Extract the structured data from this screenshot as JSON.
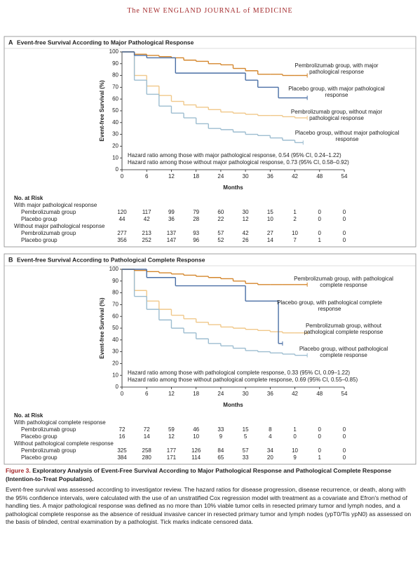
{
  "header": {
    "journal": "The NEW ENGLAND JOURNAL of MEDICINE"
  },
  "chart_data": [
    {
      "type": "line",
      "step": true,
      "panel": "A",
      "title": "Event-free Survival According to Major Pathological Response",
      "y_label": "Event-free Survival (%)",
      "x_label": "Months",
      "xlim": [
        0,
        54
      ],
      "ylim": [
        0,
        100
      ],
      "xticks": [
        0,
        6,
        12,
        18,
        24,
        30,
        36,
        42,
        48,
        54
      ],
      "yticks": [
        0,
        10,
        20,
        30,
        40,
        50,
        60,
        70,
        80,
        90,
        100
      ],
      "series": [
        {
          "name": "Pembrolizumab group, with major pathological response",
          "color": "#d4862c",
          "x": [
            0,
            3,
            6,
            9,
            12,
            15,
            18,
            21,
            24,
            27,
            30,
            33,
            36,
            39,
            42,
            45
          ],
          "values": [
            100,
            98,
            97,
            96,
            95,
            93,
            92,
            90,
            89,
            86,
            84,
            81,
            81,
            80,
            80,
            80
          ]
        },
        {
          "name": "Placebo group, with major pathological response",
          "color": "#4a6fa5",
          "x": [
            0,
            3,
            6,
            13,
            30,
            33,
            38,
            45
          ],
          "values": [
            100,
            97,
            95,
            82,
            76,
            70,
            61,
            61
          ]
        },
        {
          "name": "Pembrolizumab group, without major pathological response",
          "color": "#f0c88a",
          "x": [
            0,
            3,
            6,
            9,
            12,
            15,
            18,
            21,
            24,
            27,
            30,
            33,
            36,
            39,
            42,
            45
          ],
          "values": [
            100,
            80,
            71,
            63,
            58,
            55,
            53,
            51,
            49,
            48,
            47,
            46,
            46,
            45,
            44,
            44
          ]
        },
        {
          "name": "Placebo group, without major pathological response",
          "color": "#9dbdd0",
          "x": [
            0,
            3,
            6,
            9,
            12,
            15,
            18,
            21,
            24,
            27,
            30,
            33,
            36,
            39,
            42,
            44
          ],
          "values": [
            100,
            76,
            64,
            54,
            48,
            44,
            39,
            35,
            34,
            32,
            30,
            29,
            27,
            25,
            23,
            23
          ]
        }
      ],
      "annotations": [
        "Hazard ratio among those with major pathological response, 0.54 (95% CI, 0.24–1.22)",
        "Hazard ratio among those without major pathological response, 0.73 (95% CI, 0.58–0.92)"
      ],
      "risk_table": {
        "title": "No. at Risk",
        "groups": [
          {
            "label": "With major pathological response",
            "rows": [
              {
                "name": "Pembrolizumab group",
                "values": [
                  120,
                  117,
                  99,
                  79,
                  60,
                  30,
                  15,
                  1,
                  0,
                  0
                ]
              },
              {
                "name": "Placebo group",
                "values": [
                  44,
                  42,
                  36,
                  28,
                  22,
                  12,
                  10,
                  2,
                  0,
                  0
                ]
              }
            ]
          },
          {
            "label": "Without major pathological response",
            "rows": [
              {
                "name": "Pembrolizumab group",
                "values": [
                  277,
                  213,
                  137,
                  93,
                  57,
                  42,
                  27,
                  10,
                  0,
                  0
                ]
              },
              {
                "name": "Placebo group",
                "values": [
                  356,
                  252,
                  147,
                  96,
                  52,
                  26,
                  14,
                  7,
                  1,
                  0
                ]
              }
            ]
          }
        ]
      }
    },
    {
      "type": "line",
      "step": true,
      "panel": "B",
      "title": "Event-free Survival According to Pathological Complete Response",
      "y_label": "Event-free Survival (%)",
      "x_label": "Months",
      "xlim": [
        0,
        54
      ],
      "ylim": [
        0,
        100
      ],
      "xticks": [
        0,
        6,
        12,
        18,
        24,
        30,
        36,
        42,
        48,
        54
      ],
      "yticks": [
        0,
        10,
        20,
        30,
        40,
        50,
        60,
        70,
        80,
        90,
        100
      ],
      "series": [
        {
          "name": "Pembrolizumab group, with pathological complete response",
          "color": "#d4862c",
          "x": [
            0,
            3,
            6,
            9,
            12,
            15,
            18,
            21,
            24,
            27,
            30,
            33,
            36,
            39,
            42,
            45
          ],
          "values": [
            100,
            99,
            98,
            97,
            96,
            95,
            94,
            93,
            92,
            90,
            88,
            87,
            87,
            87,
            87,
            87
          ]
        },
        {
          "name": "Placebo group, with pathological complete response",
          "color": "#4a6fa5",
          "x": [
            0,
            6,
            13,
            30,
            38,
            39
          ],
          "values": [
            100,
            93,
            86,
            73,
            37,
            37
          ]
        },
        {
          "name": "Pembrolizumab group, without pathological complete response",
          "color": "#f0c88a",
          "x": [
            0,
            3,
            6,
            9,
            12,
            15,
            18,
            21,
            24,
            27,
            30,
            33,
            36,
            39,
            42,
            45
          ],
          "values": [
            100,
            82,
            73,
            66,
            61,
            58,
            55,
            53,
            51,
            50,
            49,
            48,
            47,
            46,
            46,
            46
          ]
        },
        {
          "name": "Placebo group, without pathological complete response",
          "color": "#9dbdd0",
          "x": [
            0,
            3,
            6,
            9,
            12,
            15,
            18,
            21,
            24,
            27,
            30,
            33,
            36,
            39,
            42,
            45
          ],
          "values": [
            100,
            77,
            66,
            57,
            50,
            46,
            41,
            37,
            35,
            33,
            31,
            30,
            29,
            28,
            27,
            27
          ]
        }
      ],
      "annotations": [
        "Hazard ratio among those with pathological complete response, 0.33 (95% CI, 0.09–1.22)",
        "Hazard ratio among those without pathological complete response, 0.69 (95% CI, 0.55–0.85)"
      ],
      "risk_table": {
        "title": "No. at Risk",
        "groups": [
          {
            "label": "With pathological complete response",
            "rows": [
              {
                "name": "Pembrolizumab group",
                "values": [
                  72,
                  72,
                  59,
                  46,
                  33,
                  15,
                  8,
                  1,
                  0,
                  0
                ]
              },
              {
                "name": "Placebo group",
                "values": [
                  16,
                  14,
                  12,
                  10,
                  9,
                  5,
                  4,
                  0,
                  0,
                  0
                ]
              }
            ]
          },
          {
            "label": "Without pathological complete response",
            "rows": [
              {
                "name": "Pembrolizumab group",
                "values": [
                  325,
                  258,
                  177,
                  126,
                  84,
                  57,
                  34,
                  10,
                  0,
                  0
                ]
              },
              {
                "name": "Placebo group",
                "values": [
                  384,
                  280,
                  171,
                  114,
                  65,
                  33,
                  20,
                  9,
                  1,
                  0
                ]
              }
            ]
          }
        ]
      }
    }
  ],
  "caption": {
    "label": "Figure 3.",
    "title": "Exploratory Analysis of Event-Free Survival According to Major Pathological Response and Pathological Complete Response (Intention-to-Treat Population).",
    "body": "Event-free survival was assessed according to investigator review. The hazard ratios for disease progression, disease recurrence, or death, along with the 95% confidence intervals, were calculated with the use of an unstratified Cox regression model with treatment as a covariate and Efron's method of handling ties. A major pathological response was defined as no more than 10% viable tumor cells in resected primary tumor and lymph nodes, and a pathological complete response as the absence of residual invasive cancer in resected primary tumor and lymph nodes (ypT0/Tis ypN0) as assessed on the basis of blinded, central examination by a pathologist. Tick marks indicate censored data."
  }
}
